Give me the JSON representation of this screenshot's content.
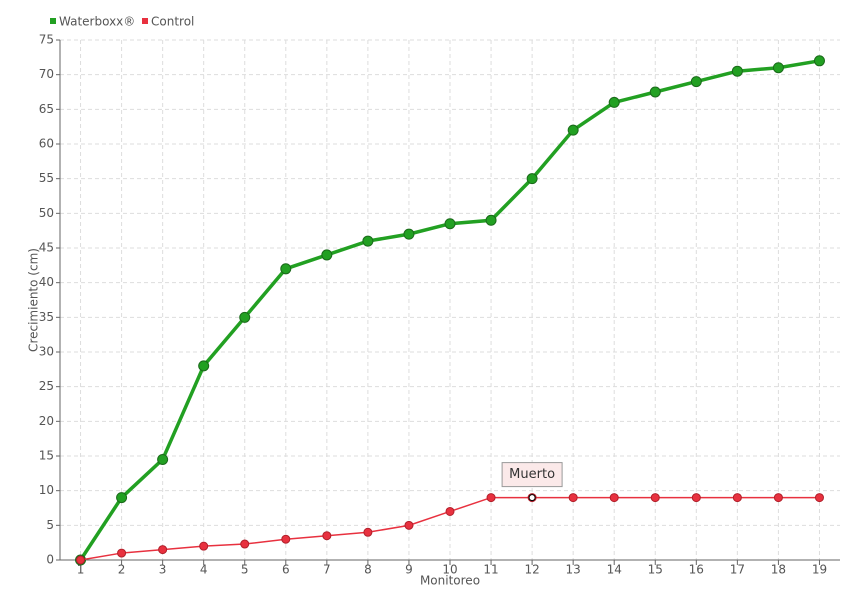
{
  "chart_data": {
    "type": "line",
    "categories": [
      "1",
      "2",
      "3",
      "4",
      "5",
      "6",
      "7",
      "8",
      "9",
      "10",
      "11",
      "12",
      "13",
      "14",
      "15",
      "16",
      "17",
      "18",
      "19"
    ],
    "series": [
      {
        "name": "Waterboxx®",
        "color": "#22a022",
        "values": [
          0,
          9,
          14.5,
          28,
          35,
          42,
          44,
          46,
          47,
          48.5,
          49,
          55,
          62,
          66,
          67.5,
          69,
          70.5,
          71,
          72
        ]
      },
      {
        "name": "Control",
        "color": "#e8313f",
        "values": [
          0,
          1,
          1.5,
          2,
          2.3,
          3,
          3.5,
          4,
          5,
          7,
          9,
          9,
          9,
          9,
          9,
          9,
          9,
          9,
          9
        ]
      }
    ],
    "ylim": [
      0,
      75
    ],
    "yticks": [
      0,
      5,
      10,
      15,
      20,
      25,
      30,
      35,
      40,
      45,
      50,
      55,
      60,
      65,
      70,
      75
    ],
    "y_label": "Crecimiento (cm)",
    "x_label": "Monitoreo",
    "grid": true,
    "legend": "top-left",
    "annotations": [
      {
        "text": "Muerto",
        "category": "12",
        "series": "Control"
      }
    ]
  }
}
